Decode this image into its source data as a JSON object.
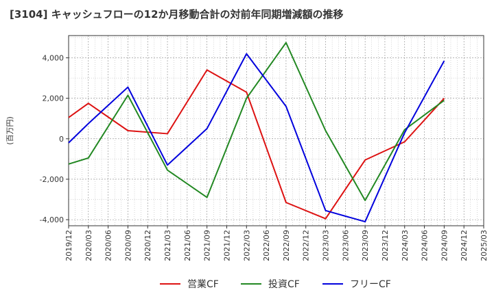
{
  "chart_data": {
    "type": "line",
    "title": "[3104]  キャッシュフローの12か月移動合計の対前年同期増減額の推移",
    "ylabel": "(百万円)",
    "xlabel": "",
    "ylim": [
      -4300,
      5100
    ],
    "yticks": [
      -4000,
      -2000,
      0,
      2000,
      4000
    ],
    "ytick_labels": [
      "-4,000",
      "-2,000",
      "0",
      "2,000",
      "4,000"
    ],
    "categories": [
      "2019/12",
      "2020/03",
      "2020/06",
      "2020/09",
      "2020/12",
      "2021/03",
      "2021/06",
      "2021/09",
      "2021/12",
      "2022/03",
      "2022/06",
      "2022/09",
      "2022/12",
      "2023/03",
      "2023/06",
      "2023/09",
      "2023/12",
      "2024/03",
      "2024/06",
      "2024/09",
      "2024/12",
      "2025/03"
    ],
    "grid": true,
    "legend_position": "bottom",
    "series": [
      {
        "name": "営業CF",
        "color": "#dd1111",
        "values": [
          1050,
          1750,
          null,
          400,
          null,
          250,
          null,
          3400,
          null,
          2300,
          null,
          -3150,
          null,
          -3950,
          null,
          -1050,
          null,
          -150,
          null,
          2000,
          null,
          null
        ]
      },
      {
        "name": "投資CF",
        "color": "#228822",
        "values": [
          -1250,
          -950,
          null,
          2150,
          null,
          -1550,
          null,
          -2900,
          null,
          2000,
          null,
          4750,
          null,
          400,
          null,
          -3050,
          null,
          450,
          null,
          1900,
          null,
          null
        ]
      },
      {
        "name": "フリーCF",
        "color": "#0000dd",
        "values": [
          -200,
          750,
          null,
          2550,
          null,
          -1300,
          null,
          500,
          null,
          4200,
          null,
          1600,
          null,
          -3550,
          null,
          -4100,
          null,
          300,
          null,
          3850,
          null,
          null
        ]
      }
    ]
  }
}
